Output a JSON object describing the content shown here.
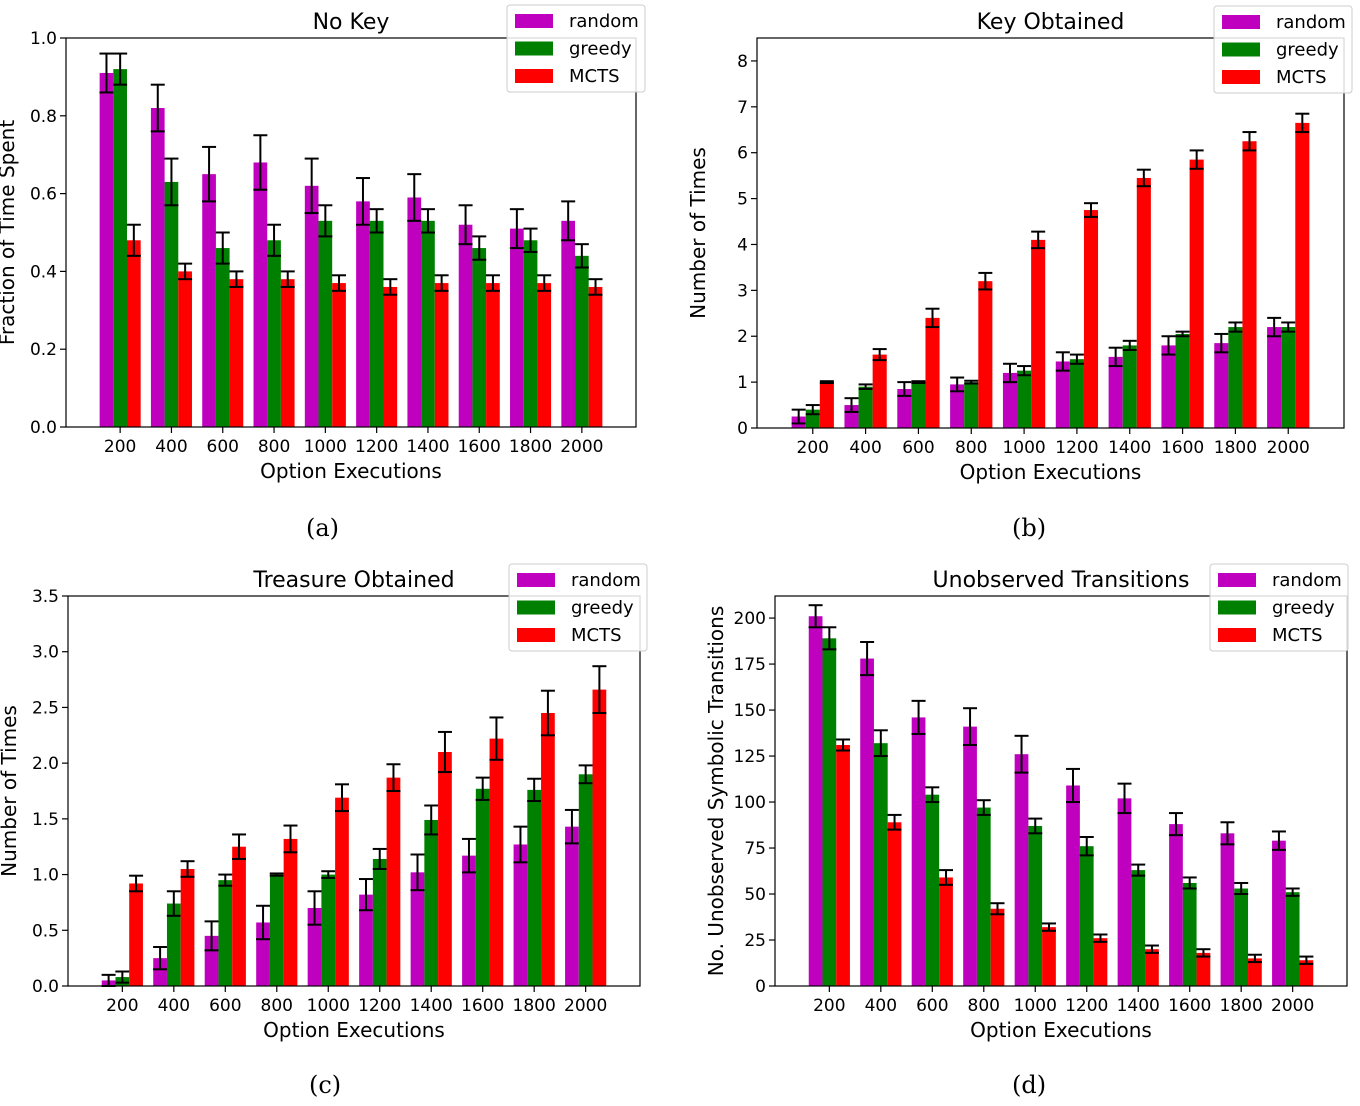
{
  "series_meta": [
    {
      "name": "random",
      "color": "#bf00bf"
    },
    {
      "name": "greedy",
      "color": "#008000"
    },
    {
      "name": "MCTS",
      "color": "#ff0000"
    }
  ],
  "captions": [
    "(a)",
    "(b)",
    "(c)",
    "(d)"
  ],
  "chart_data": [
    {
      "type": "bar",
      "title": "No Key",
      "xlabel": "Option Executions",
      "ylabel": "Fraction of Time Spent",
      "ylim": [
        0,
        1.0
      ],
      "yticks": [
        "0.0",
        "0.2",
        "0.4",
        "0.6",
        "0.8",
        "1.0"
      ],
      "legend": "top-right",
      "categories": [
        "200",
        "400",
        "600",
        "800",
        "1000",
        "1200",
        "1400",
        "1600",
        "1800",
        "2000"
      ],
      "series": [
        {
          "name": "random",
          "values": [
            0.91,
            0.82,
            0.65,
            0.68,
            0.62,
            0.58,
            0.59,
            0.52,
            0.51,
            0.53
          ],
          "errors": [
            0.05,
            0.06,
            0.07,
            0.07,
            0.07,
            0.06,
            0.06,
            0.05,
            0.05,
            0.05
          ]
        },
        {
          "name": "greedy",
          "values": [
            0.92,
            0.63,
            0.46,
            0.48,
            0.53,
            0.53,
            0.53,
            0.46,
            0.48,
            0.44
          ],
          "errors": [
            0.04,
            0.06,
            0.04,
            0.04,
            0.04,
            0.03,
            0.03,
            0.03,
            0.03,
            0.03
          ]
        },
        {
          "name": "MCTS",
          "values": [
            0.48,
            0.4,
            0.38,
            0.38,
            0.37,
            0.36,
            0.37,
            0.37,
            0.37,
            0.36
          ],
          "errors": [
            0.04,
            0.02,
            0.02,
            0.02,
            0.02,
            0.02,
            0.02,
            0.02,
            0.02,
            0.02
          ]
        }
      ]
    },
    {
      "type": "bar",
      "title": "Key Obtained",
      "xlabel": "Option Executions",
      "ylabel": "Number of Times",
      "ylim": [
        0,
        8.5
      ],
      "yticks": [
        "0",
        "1",
        "2",
        "3",
        "4",
        "5",
        "6",
        "7",
        "8"
      ],
      "legend": "top-right",
      "categories": [
        "200",
        "400",
        "600",
        "800",
        "1000",
        "1200",
        "1400",
        "1600",
        "1800",
        "2000"
      ],
      "series": [
        {
          "name": "random",
          "values": [
            0.25,
            0.5,
            0.85,
            0.95,
            1.2,
            1.45,
            1.55,
            1.8,
            1.85,
            2.2
          ],
          "errors": [
            0.15,
            0.15,
            0.15,
            0.15,
            0.2,
            0.2,
            0.2,
            0.2,
            0.2,
            0.2
          ]
        },
        {
          "name": "greedy",
          "values": [
            0.4,
            0.9,
            1.0,
            1.0,
            1.25,
            1.5,
            1.8,
            2.05,
            2.2,
            2.2
          ],
          "errors": [
            0.1,
            0.05,
            0.02,
            0.03,
            0.1,
            0.1,
            0.1,
            0.05,
            0.1,
            0.1
          ]
        },
        {
          "name": "MCTS",
          "values": [
            1.0,
            1.6,
            2.4,
            3.2,
            4.1,
            4.75,
            5.45,
            5.85,
            6.25,
            6.65
          ],
          "errors": [
            0.02,
            0.12,
            0.2,
            0.18,
            0.18,
            0.15,
            0.18,
            0.2,
            0.2,
            0.2
          ]
        }
      ]
    },
    {
      "type": "bar",
      "title": "Treasure Obtained",
      "xlabel": "Option Executions",
      "ylabel": "Number of Times",
      "ylim": [
        0,
        3.5
      ],
      "yticks": [
        "0.0",
        "0.5",
        "1.0",
        "1.5",
        "2.0",
        "2.5",
        "3.0",
        "3.5"
      ],
      "legend": "top-right",
      "categories": [
        "200",
        "400",
        "600",
        "800",
        "1000",
        "1200",
        "1400",
        "1600",
        "1800",
        "2000"
      ],
      "series": [
        {
          "name": "random",
          "values": [
            0.05,
            0.25,
            0.45,
            0.57,
            0.7,
            0.82,
            1.02,
            1.17,
            1.27,
            1.43
          ],
          "errors": [
            0.05,
            0.1,
            0.13,
            0.15,
            0.15,
            0.14,
            0.16,
            0.15,
            0.16,
            0.15
          ]
        },
        {
          "name": "greedy",
          "values": [
            0.08,
            0.74,
            0.95,
            1.0,
            1.0,
            1.14,
            1.49,
            1.77,
            1.76,
            1.9
          ],
          "errors": [
            0.05,
            0.11,
            0.05,
            0.01,
            0.03,
            0.09,
            0.13,
            0.1,
            0.1,
            0.08
          ]
        },
        {
          "name": "MCTS",
          "values": [
            0.92,
            1.05,
            1.25,
            1.32,
            1.69,
            1.87,
            2.1,
            2.22,
            2.45,
            2.66
          ],
          "errors": [
            0.07,
            0.07,
            0.11,
            0.12,
            0.12,
            0.12,
            0.18,
            0.19,
            0.2,
            0.21
          ]
        }
      ]
    },
    {
      "type": "bar",
      "title": "Unobserved Transitions",
      "xlabel": "Option Executions",
      "ylabel": "No. Unobserved Symbolic Transitions",
      "ylim": [
        0,
        212
      ],
      "yticks": [
        "0",
        "25",
        "50",
        "75",
        "100",
        "125",
        "150",
        "175",
        "200"
      ],
      "legend": "top-right",
      "categories": [
        "200",
        "400",
        "600",
        "800",
        "1000",
        "1200",
        "1400",
        "1600",
        "1800",
        "2000"
      ],
      "series": [
        {
          "name": "random",
          "values": [
            201,
            178,
            146,
            141,
            126,
            109,
            102,
            88,
            83,
            79
          ],
          "errors": [
            6,
            9,
            9,
            10,
            10,
            9,
            8,
            6,
            6,
            5
          ]
        },
        {
          "name": "greedy",
          "values": [
            189,
            132,
            104,
            97,
            87,
            76,
            63,
            56,
            53,
            51
          ],
          "errors": [
            6,
            7,
            4,
            4,
            4,
            5,
            3,
            3,
            3,
            2
          ]
        },
        {
          "name": "MCTS",
          "values": [
            131,
            89,
            59,
            42,
            32,
            26,
            20,
            18,
            15,
            14
          ],
          "errors": [
            3,
            4,
            4,
            3,
            2,
            2,
            2,
            2,
            2,
            2
          ]
        }
      ]
    }
  ]
}
